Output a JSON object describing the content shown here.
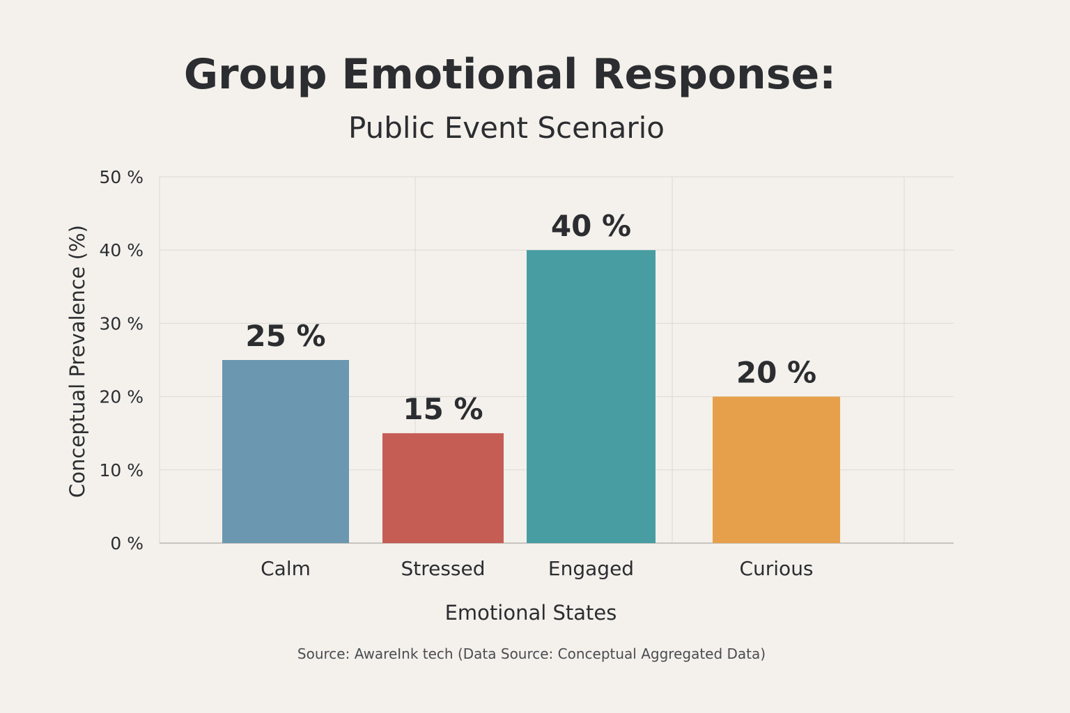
{
  "chart_data": {
    "type": "bar",
    "title": "Group Emotional Response:",
    "subtitle": "Public Event Scenario",
    "xlabel": "Emotional States",
    "ylabel": "Conceptual Prevalence (%)",
    "categories": [
      "Calm",
      "Stressed",
      "Engaged",
      "Curious"
    ],
    "values": [
      25,
      15,
      40,
      20
    ],
    "value_labels": [
      "25 %",
      "15 %",
      "40 %",
      "20 %"
    ],
    "colors": [
      "#6b97b0",
      "#c55d55",
      "#489da3",
      "#e6a04b"
    ],
    "ylim": [
      0,
      50
    ],
    "yticks": [
      0,
      10,
      20,
      30,
      40,
      50
    ],
    "ytick_labels": [
      "0 %",
      "10 %",
      "20 %",
      "30 %",
      "40 %",
      "50 %"
    ],
    "grid": true,
    "legend": "none",
    "source": "Source: AwareInk tech (Data Source: Conceptual Aggregated Data)"
  }
}
